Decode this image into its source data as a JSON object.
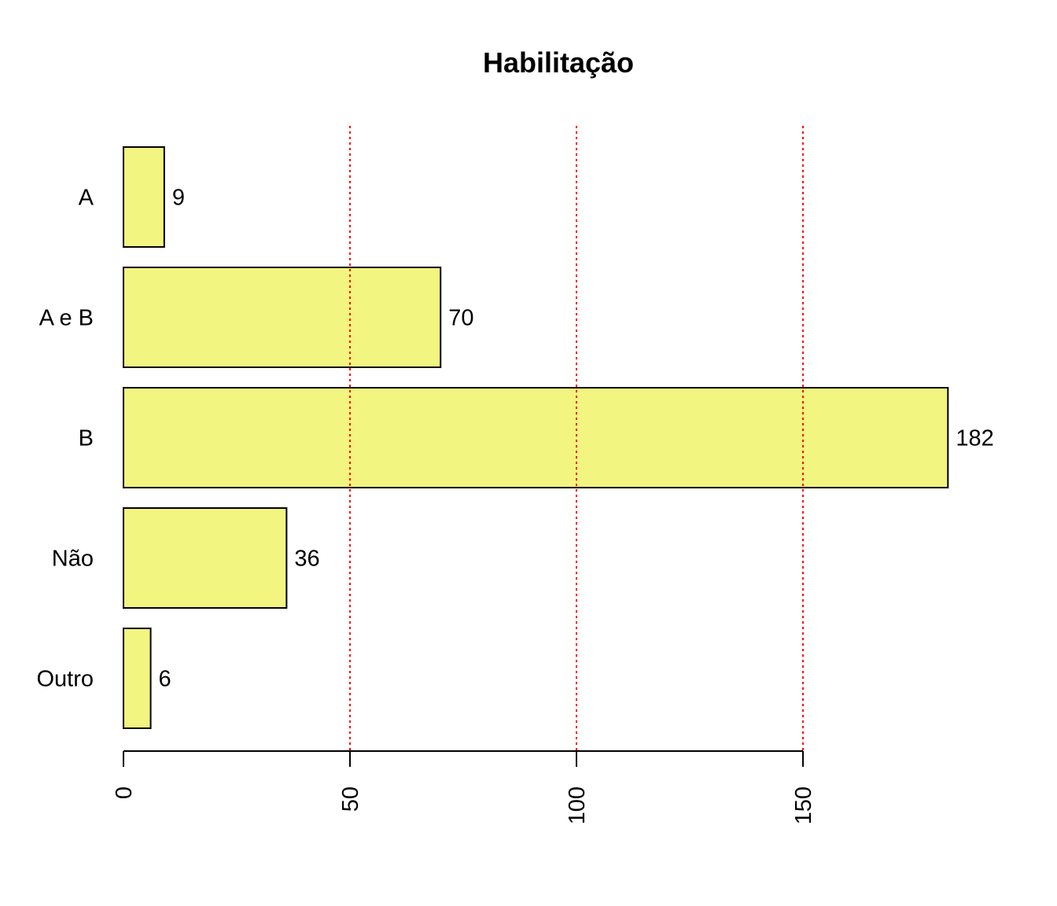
{
  "chart_data": {
    "type": "bar",
    "orientation": "horizontal",
    "title": "Habilitação",
    "xlabel": "",
    "ylabel": "",
    "categories": [
      "A",
      "A e B",
      "B",
      "Não",
      "Outro"
    ],
    "values": [
      9,
      70,
      182,
      36,
      6
    ],
    "value_labels": [
      "9",
      "70",
      "182",
      "36",
      "6"
    ],
    "xlim": [
      0,
      182
    ],
    "x_ticks": [
      0,
      50,
      100,
      150
    ],
    "x_tick_labels": [
      "0",
      "50",
      "100",
      "150"
    ],
    "tick_label_orientation": "vertical",
    "gridlines": {
      "values": [
        50,
        100,
        150
      ],
      "style": "dotted",
      "color": "#ff0000"
    },
    "grid": true,
    "legend": "none",
    "bar_color": "#f2f57f",
    "bar_border_color": "#000000"
  }
}
